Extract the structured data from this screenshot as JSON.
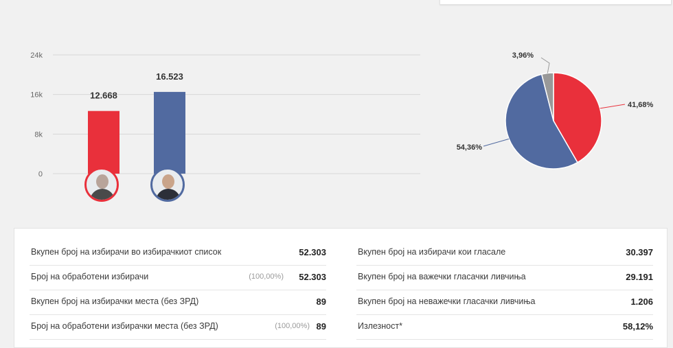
{
  "chart_data": [
    {
      "type": "bar",
      "categories": [
        "Candidate 1",
        "Candidate 2"
      ],
      "values": [
        12668,
        16523
      ],
      "value_labels": [
        "12.668",
        "16.523"
      ],
      "colors": [
        "#e9303b",
        "#516aa0"
      ],
      "y_ticks": [
        "24k",
        "16k",
        "8k",
        "0"
      ],
      "y_tick_values": [
        24000,
        16000,
        8000,
        0
      ],
      "ylim": [
        0,
        24000
      ],
      "grid": true
    },
    {
      "type": "pie",
      "labels": [
        "41,68%",
        "54,36%",
        "3,96%"
      ],
      "values": [
        41.68,
        54.36,
        3.96
      ],
      "colors": [
        "#e9303b",
        "#516aa0",
        "#999999"
      ]
    }
  ],
  "stats": {
    "left": [
      {
        "label": "Вкупен број на избирачи во избирачкиот список",
        "pct": "",
        "value": "52.303"
      },
      {
        "label": "Број на обработени избирачи",
        "pct": "(100,00%)",
        "value": "52.303"
      },
      {
        "label": "Вкупен број на избирачки места (без ЗРД)",
        "pct": "",
        "value": "89"
      },
      {
        "label": "Број на обработени избирачки места (без ЗРД)",
        "pct": "(100,00%)",
        "value": "89"
      }
    ],
    "right": [
      {
        "label": "Вкупен број на избирачи кои гласале",
        "value": "30.397"
      },
      {
        "label": "Вкупен број на важечки гласачки ливчиња",
        "value": "29.191"
      },
      {
        "label": "Вкупен број на неважечки гласачки ливчиња",
        "value": "1.206"
      },
      {
        "label": "Излезност*",
        "value": "58,12%"
      }
    ]
  }
}
